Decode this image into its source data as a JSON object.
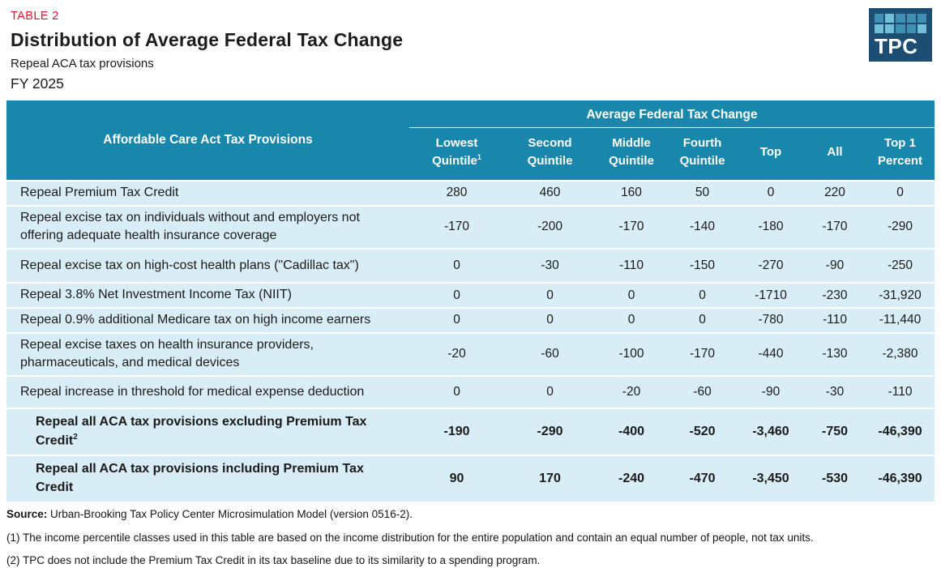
{
  "page": {
    "table_label": "TABLE 2",
    "title": "Distribution of Average Federal Tax Change",
    "subtitle": "Repeal ACA tax provisions",
    "fiscal_year": "FY 2025"
  },
  "colors": {
    "accent_red": "#e4162b",
    "header_teal": "#1987ab",
    "row_light_blue": "#d9edf6",
    "logo_navy": "#1d4d73",
    "logo_square_mid": "#4090b4",
    "logo_square_light": "#71c0d8"
  },
  "logo": {
    "text": "TPC",
    "squares": [
      [
        "mid",
        "light",
        "mid",
        "mid",
        "mid"
      ],
      [
        "light",
        "light",
        "mid",
        "mid",
        "light"
      ]
    ]
  },
  "table": {
    "row_header": "Affordable Care Act Tax Provisions",
    "group_header": "Average Federal Tax Change",
    "columns": [
      {
        "label": "Lowest Quintile",
        "lines": [
          "Lowest",
          "Quintile"
        ],
        "sup": "1"
      },
      {
        "label": "Second Quintile",
        "lines": [
          "Second",
          "Quintile"
        ]
      },
      {
        "label": "Middle Quintile",
        "lines": [
          "Middle",
          "Quintile"
        ]
      },
      {
        "label": "Fourth Quintile",
        "lines": [
          "Fourth",
          "Quintile"
        ]
      },
      {
        "label": "Top",
        "lines": [
          "Top"
        ]
      },
      {
        "label": "All",
        "lines": [
          "All"
        ]
      },
      {
        "label": "Top 1 Percent",
        "lines": [
          "Top 1",
          "Percent"
        ]
      }
    ],
    "rows": [
      {
        "label": "Repeal Premium Tax Credit",
        "values": [
          "280",
          "460",
          "160",
          "50",
          "0",
          "220",
          "0"
        ]
      },
      {
        "label": "Repeal excise tax on individuals without and employers not offering adequate health insurance coverage",
        "values": [
          "-170",
          "-200",
          "-170",
          "-140",
          "-180",
          "-170",
          "-290"
        ]
      },
      {
        "label": "Repeal excise tax on high-cost health plans (\"Cadillac tax\")",
        "values": [
          "0",
          "-30",
          "-110",
          "-150",
          "-270",
          "-90",
          "-250"
        ]
      },
      {
        "label": "Repeal 3.8% Net Investment Income Tax (NIIT)",
        "values": [
          "0",
          "0",
          "0",
          "0",
          "-1710",
          "-230",
          "-31,920"
        ]
      },
      {
        "label": "Repeal 0.9% additional Medicare tax on high income earners",
        "values": [
          "0",
          "0",
          "0",
          "0",
          "-780",
          "-110",
          "-11,440"
        ]
      },
      {
        "label": "Repeal excise taxes on health insurance providers, pharmaceuticals, and medical devices",
        "values": [
          "-20",
          "-60",
          "-100",
          "-170",
          "-440",
          "-130",
          "-2,380"
        ]
      },
      {
        "label": "Repeal increase in threshold for medical expense deduction",
        "values": [
          "0",
          "0",
          "-20",
          "-60",
          "-90",
          "-30",
          "-110"
        ]
      },
      {
        "label": "Repeal all ACA tax provisions excluding Premium Tax Credit",
        "sup": "2",
        "bold": true,
        "values": [
          "-190",
          "-290",
          "-400",
          "-520",
          "-3,460",
          "-750",
          "-46,390"
        ]
      },
      {
        "label": "Repeal all ACA tax provisions including Premium Tax Credit",
        "bold": true,
        "values": [
          "90",
          "170",
          "-240",
          "-470",
          "-3,450",
          "-530",
          "-46,390"
        ]
      }
    ]
  },
  "footer": {
    "source_label": "Source:",
    "source_text": " Urban-Brooking Tax Policy Center Microsimulation Model (version 0516-2).",
    "note1": "(1) The income percentile classes used in this table are based on the income distribution for the entire population and contain an equal number of people, not tax units.",
    "note2": "(2) TPC does not include the Premium Tax Credit in its tax baseline due to its similarity to a spending program."
  }
}
